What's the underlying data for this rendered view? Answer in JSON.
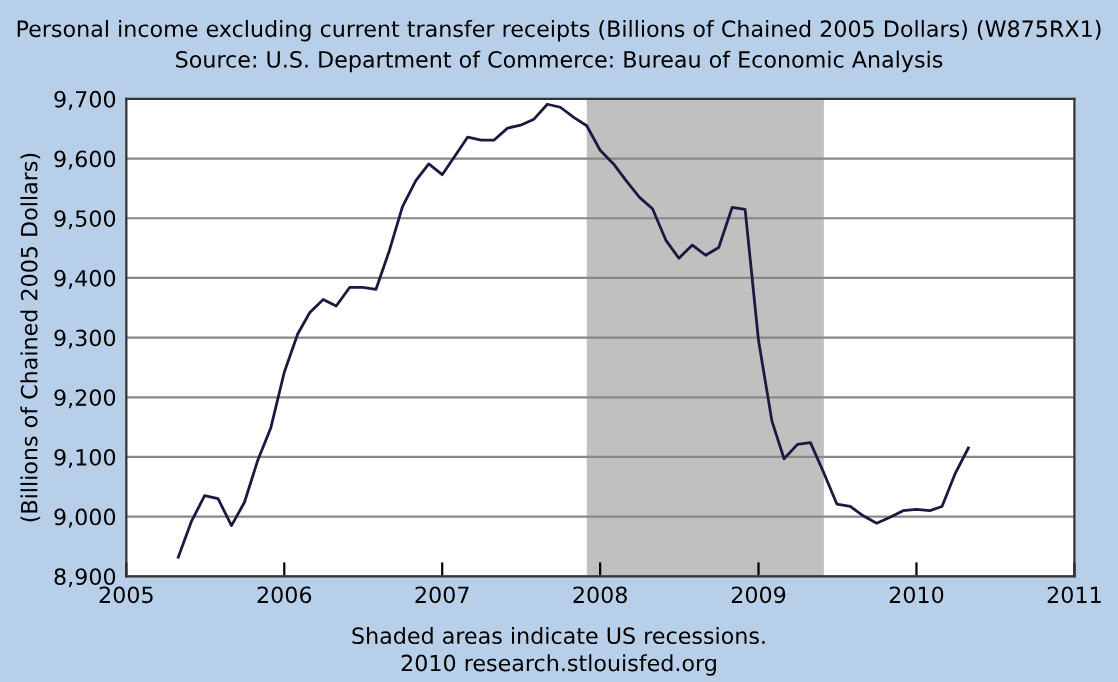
{
  "chart_data": {
    "type": "line",
    "title": "Personal income excluding current transfer receipts (Billions of Chained 2005 Dollars) (W875RX1)",
    "subtitle": "Source: U.S. Department of Commerce: Bureau of Economic Analysis",
    "ylabel": "(Billions of Chained 2005 Dollars)",
    "annotations": [
      "Shaded areas indicate US recessions.",
      "2010 research.stlouisfed.org"
    ],
    "x": [
      "2005-05",
      "2005-06",
      "2005-07",
      "2005-08",
      "2005-09",
      "2005-10",
      "2005-11",
      "2005-12",
      "2006-01",
      "2006-02",
      "2006-03",
      "2006-04",
      "2006-05",
      "2006-06",
      "2006-07",
      "2006-08",
      "2006-09",
      "2006-10",
      "2006-11",
      "2006-12",
      "2007-01",
      "2007-02",
      "2007-03",
      "2007-04",
      "2007-05",
      "2007-06",
      "2007-07",
      "2007-08",
      "2007-09",
      "2007-10",
      "2007-11",
      "2007-12",
      "2008-01",
      "2008-02",
      "2008-03",
      "2008-04",
      "2008-05",
      "2008-06",
      "2008-07",
      "2008-08",
      "2008-09",
      "2008-10",
      "2008-11",
      "2008-12",
      "2009-01",
      "2009-02",
      "2009-03",
      "2009-04",
      "2009-05",
      "2009-06",
      "2009-07",
      "2009-08",
      "2009-09",
      "2009-10",
      "2009-11",
      "2009-12",
      "2010-01",
      "2010-02",
      "2010-03",
      "2010-04",
      "2010-05"
    ],
    "series": [
      {
        "color": "#1a1a40",
        "values": [
          8932,
          8993,
          9035,
          9030,
          8985,
          9024,
          9095,
          9149,
          9242,
          9306,
          9342,
          9364,
          9353,
          9384,
          9384,
          9381,
          9446,
          9519,
          9563,
          9591,
          9573,
          9606,
          9636,
          9631,
          9631,
          9651,
          9656,
          9666,
          9691,
          9686,
          9669,
          9655,
          9614,
          9591,
          9563,
          9535,
          9516,
          9463,
          9433,
          9455,
          9438,
          9451,
          9518,
          9515,
          9295,
          9160,
          9097,
          9121,
          9124,
          9073,
          9021,
          9017,
          9001,
          8989,
          8999,
          9010,
          9012,
          9010,
          9017,
          9073,
          9115
        ]
      }
    ],
    "xlim": [
      "2005",
      "2011"
    ],
    "xticks": [
      "2005",
      "2006",
      "2007",
      "2008",
      "2009",
      "2010",
      "2011"
    ],
    "ylim": [
      8900,
      9700
    ],
    "yticks": [
      {
        "value": 8900,
        "label": "8,900"
      },
      {
        "value": 9000,
        "label": "9,000"
      },
      {
        "value": 9100,
        "label": "9,100"
      },
      {
        "value": 9200,
        "label": "9,200"
      },
      {
        "value": 9300,
        "label": "9,300"
      },
      {
        "value": 9400,
        "label": "9,400"
      },
      {
        "value": 9500,
        "label": "9,500"
      },
      {
        "value": 9600,
        "label": "9,600"
      },
      {
        "value": 9700,
        "label": "9,700"
      }
    ],
    "bands": [
      {
        "axis": "x",
        "from": "2007-12",
        "to": "2009-06",
        "color": "#c0c0c0"
      }
    ],
    "grid": "y",
    "legend": false,
    "marker": "none",
    "line_style": "solid"
  }
}
